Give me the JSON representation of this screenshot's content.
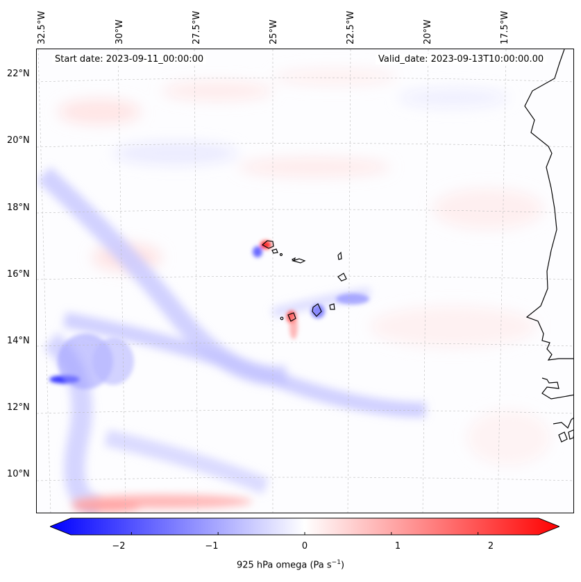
{
  "header": {
    "start_date": "Start date: 2023-09-11_00:00:00",
    "valid_date": "Valid_date: 2023-09-13T10:00:00.00"
  },
  "longitude_labels": [
    "32.5°W",
    "30°W",
    "27.5°W",
    "25°W",
    "22.5°W",
    "20°W",
    "17.5°W"
  ],
  "latitude_labels": [
    "22°N",
    "20°N",
    "18°N",
    "16°N",
    "14°N",
    "12°N",
    "10°N"
  ],
  "colorbar": {
    "ticks": [
      "−2",
      "−1",
      "0",
      "1",
      "2"
    ],
    "label_main": "925 hPa omega (Pa s",
    "label_sup": "−1",
    "label_end": ")",
    "colors": {
      "min": "#0000ff",
      "mid": "#ffffff",
      "max": "#ff0000"
    },
    "range": [
      -2.7,
      2.7
    ]
  },
  "map": {
    "coastline_color": "#000000",
    "gridline_color": "#bbbbbb"
  }
}
